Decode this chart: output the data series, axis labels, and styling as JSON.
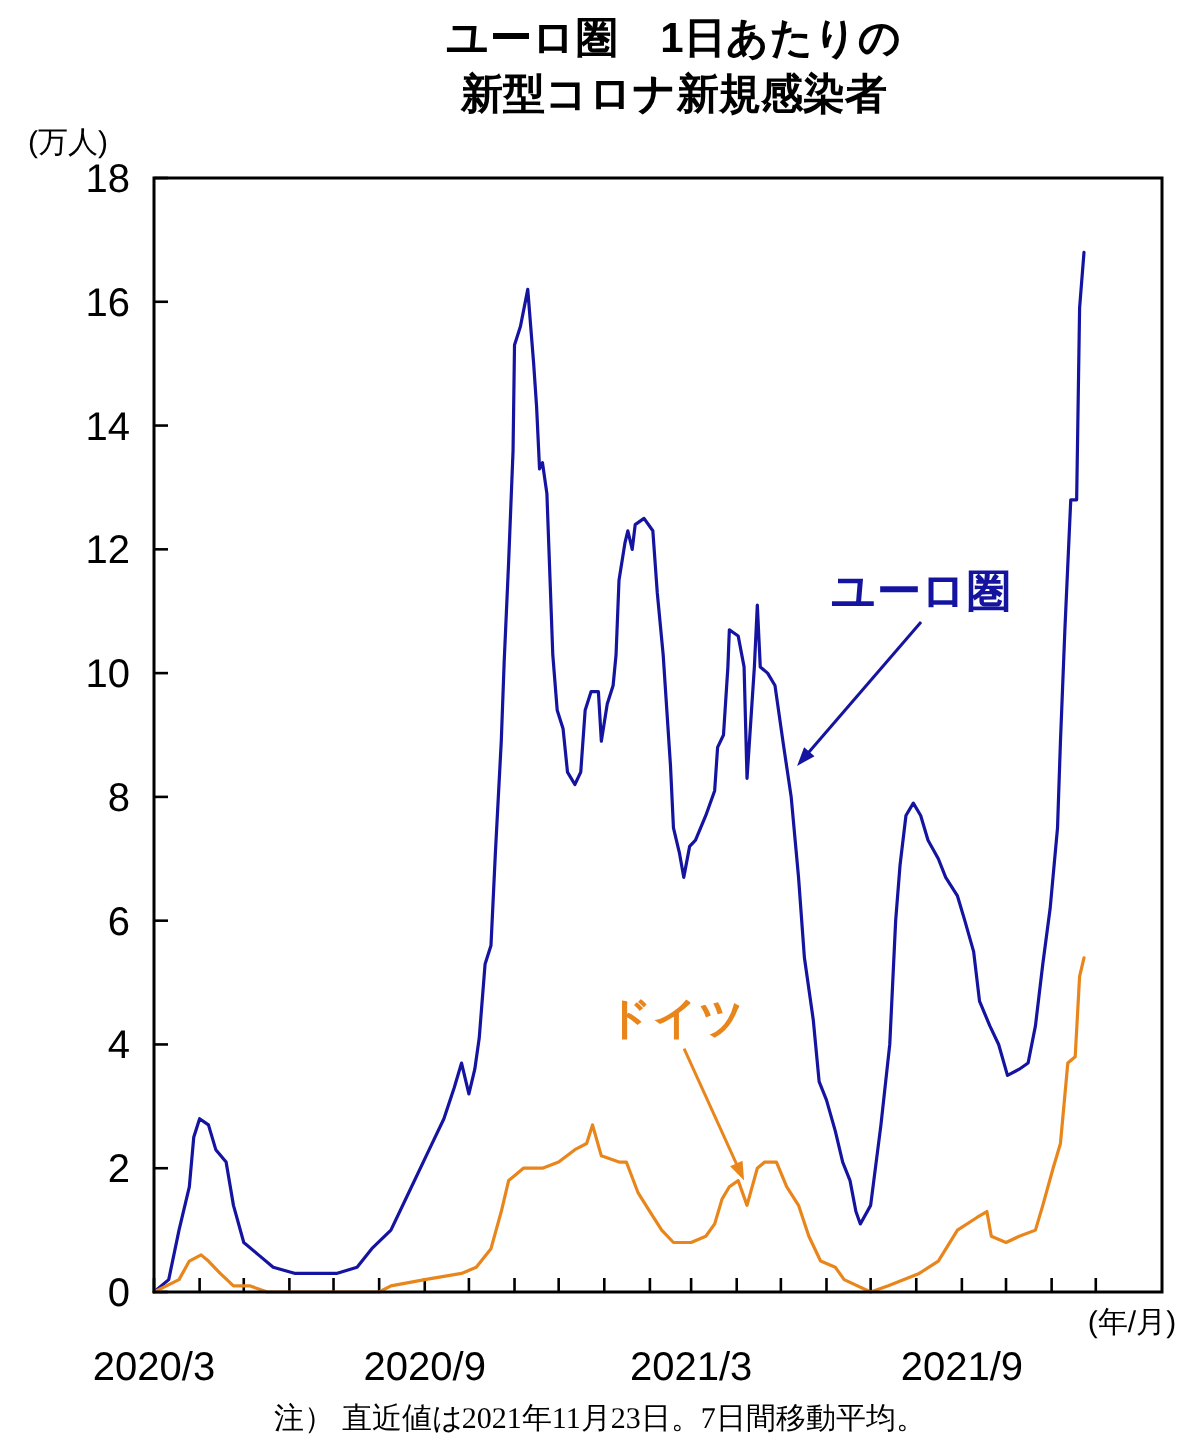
{
  "chart_data": {
    "type": "line",
    "title": "ユーロ圏　1日あたりの",
    "subtitle": "新型コロナ新規感染者",
    "ylabel": "(万人)",
    "xlabel": "(年/月)",
    "xlim": [
      "2020-03-01",
      "2022-01-15"
    ],
    "xticks": [
      {
        "value": "2020-03",
        "label": "2020/3"
      },
      {
        "value": "2020-04",
        "label": null
      },
      {
        "value": "2020-05",
        "label": null
      },
      {
        "value": "2020-06",
        "label": null
      },
      {
        "value": "2020-07",
        "label": null
      },
      {
        "value": "2020-08",
        "label": null
      },
      {
        "value": "2020-09",
        "label": "2020/9"
      },
      {
        "value": "2020-10",
        "label": null
      },
      {
        "value": "2020-11",
        "label": null
      },
      {
        "value": "2020-12",
        "label": null
      },
      {
        "value": "2021-01",
        "label": null
      },
      {
        "value": "2021-02",
        "label": null
      },
      {
        "value": "2021-03",
        "label": "2021/3"
      },
      {
        "value": "2021-04",
        "label": null
      },
      {
        "value": "2021-05",
        "label": null
      },
      {
        "value": "2021-06",
        "label": null
      },
      {
        "value": "2021-07",
        "label": null
      },
      {
        "value": "2021-08",
        "label": null
      },
      {
        "value": "2021-09",
        "label": "2021/9"
      },
      {
        "value": "2021-10",
        "label": null
      },
      {
        "value": "2021-11",
        "label": null
      },
      {
        "value": "2021-12",
        "label": null
      }
    ],
    "ylim": [
      0,
      18
    ],
    "yticks": [
      0,
      2,
      4,
      6,
      8,
      10,
      12,
      14,
      16,
      18
    ],
    "grid": false,
    "marker": "none",
    "line_style": "solid",
    "series": [
      {
        "color": "#1414a0",
        "x": [
          "2020-03-01",
          "2020-03-11",
          "2020-03-18",
          "2020-03-25",
          "2020-03-28",
          "2020-04-01",
          "2020-04-07",
          "2020-04-12",
          "2020-04-19",
          "2020-04-24",
          "2020-05-01",
          "2020-05-11",
          "2020-05-21",
          "2020-06-05",
          "2020-07-03",
          "2020-07-17",
          "2020-07-27",
          "2020-08-09",
          "2020-08-21",
          "2020-09-04",
          "2020-09-14",
          "2020-09-21",
          "2020-09-26",
          "2020-10-01",
          "2020-10-05",
          "2020-10-08",
          "2020-10-12",
          "2020-10-16",
          "2020-10-19",
          "2020-10-23",
          "2020-10-25",
          "2020-10-28",
          "2020-10-31",
          "2020-11-01",
          "2020-11-05",
          "2020-11-10",
          "2020-11-14",
          "2020-11-16",
          "2020-11-18",
          "2020-11-20",
          "2020-11-23",
          "2020-11-27",
          "2020-11-30",
          "2020-12-04",
          "2020-12-07",
          "2020-12-12",
          "2020-12-16",
          "2020-12-19",
          "2020-12-23",
          "2020-12-28",
          "2020-12-30",
          "2021-01-03",
          "2021-01-07",
          "2021-01-09",
          "2021-01-11",
          "2021-01-15",
          "2021-01-17",
          "2021-01-20",
          "2021-01-22",
          "2021-01-28",
          "2021-02-03",
          "2021-02-06",
          "2021-02-10",
          "2021-02-15",
          "2021-02-17",
          "2021-02-21",
          "2021-02-24",
          "2021-02-28",
          "2021-03-04",
          "2021-03-11",
          "2021-03-17",
          "2021-03-19",
          "2021-03-23",
          "2021-03-26",
          "2021-03-27",
          "2021-04-02",
          "2021-04-06",
          "2021-04-08",
          "2021-04-13",
          "2021-04-15",
          "2021-04-17",
          "2021-04-22",
          "2021-04-27",
          "2021-05-03",
          "2021-05-08",
          "2021-05-13",
          "2021-05-17",
          "2021-05-23",
          "2021-05-27",
          "2021-06-01",
          "2021-06-07",
          "2021-06-12",
          "2021-06-17",
          "2021-06-21",
          "2021-06-24",
          "2021-07-01",
          "2021-07-08",
          "2021-07-14",
          "2021-07-18",
          "2021-07-21",
          "2021-07-25",
          "2021-07-30",
          "2021-08-04",
          "2021-08-09",
          "2021-08-16",
          "2021-08-21",
          "2021-08-29",
          "2021-09-03",
          "2021-09-09",
          "2021-09-13",
          "2021-09-20",
          "2021-09-26",
          "2021-10-02",
          "2021-10-10",
          "2021-10-16",
          "2021-10-21",
          "2021-10-26",
          "2021-10-31",
          "2021-11-05",
          "2021-11-07",
          "2021-11-10",
          "2021-11-14",
          "2021-11-18",
          "2021-11-20",
          "2021-11-23"
        ],
        "values": [
          0,
          0.2,
          1.0,
          1.7,
          2.5,
          2.8,
          2.7,
          2.3,
          2.1,
          1.4,
          0.8,
          0.6,
          0.4,
          0.3,
          0.3,
          0.4,
          0.7,
          1.0,
          1.6,
          2.3,
          2.8,
          3.3,
          3.7,
          3.2,
          3.6,
          4.1,
          5.3,
          5.6,
          7.1,
          8.9,
          10.2,
          11.8,
          13.6,
          15.3,
          15.6,
          16.2,
          15.0,
          14.3,
          13.3,
          13.4,
          12.9,
          10.3,
          9.4,
          9.1,
          8.4,
          8.2,
          8.4,
          9.4,
          9.7,
          9.7,
          8.9,
          9.5,
          9.8,
          10.3,
          11.5,
          12.1,
          12.3,
          12.0,
          12.4,
          12.5,
          12.3,
          11.3,
          10.3,
          8.5,
          7.5,
          7.1,
          6.7,
          7.2,
          7.3,
          7.7,
          8.1,
          8.8,
          9.0,
          10.1,
          10.7,
          10.6,
          10.1,
          8.3,
          10.1,
          11.1,
          10.1,
          10.0,
          9.8,
          8.8,
          8.0,
          6.7,
          5.4,
          4.4,
          3.4,
          3.1,
          2.6,
          2.1,
          1.8,
          1.3,
          1.1,
          1.4,
          2.7,
          4.0,
          6.0,
          6.9,
          7.7,
          7.9,
          7.7,
          7.3,
          7.0,
          6.7,
          6.4,
          6.0,
          5.5,
          4.7,
          4.3,
          4.0,
          3.5,
          3.6,
          3.7,
          4.3,
          5.3,
          6.2,
          7.5,
          8.9,
          10.7,
          12.8,
          12.8,
          15.9,
          16.8
        ]
      },
      {
        "color": "#e8861c",
        "x": [
          "2020-03-01",
          "2020-03-18",
          "2020-03-25",
          "2020-04-02",
          "2020-04-07",
          "2020-04-15",
          "2020-04-24",
          "2020-05-05",
          "2020-05-17",
          "2020-08-01",
          "2020-08-09",
          "2020-09-01",
          "2020-09-26",
          "2020-10-06",
          "2020-10-16",
          "2020-10-23",
          "2020-10-28",
          "2020-11-02",
          "2020-11-07",
          "2020-11-15",
          "2020-11-20",
          "2020-12-01",
          "2020-12-12",
          "2020-12-20",
          "2020-12-24",
          "2020-12-30",
          "2021-01-11",
          "2021-01-16",
          "2021-01-24",
          "2021-02-01",
          "2021-02-09",
          "2021-02-17",
          "2021-03-01",
          "2021-03-11",
          "2021-03-17",
          "2021-03-22",
          "2021-03-27",
          "2021-04-02",
          "2021-04-08",
          "2021-04-15",
          "2021-04-20",
          "2021-04-28",
          "2021-05-05",
          "2021-05-13",
          "2021-05-20",
          "2021-05-28",
          "2021-06-07",
          "2021-06-13",
          "2021-07-01",
          "2021-07-13",
          "2021-08-03",
          "2021-08-16",
          "2021-08-29",
          "2021-09-11",
          "2021-09-18",
          "2021-09-21",
          "2021-10-01",
          "2021-10-10",
          "2021-10-21",
          "2021-10-26",
          "2021-11-02",
          "2021-11-07",
          "2021-11-12",
          "2021-11-17",
          "2021-11-20",
          "2021-11-23"
        ],
        "values": [
          0,
          0.2,
          0.5,
          0.6,
          0.5,
          0.3,
          0.1,
          0.1,
          0.0,
          0.0,
          0.1,
          0.2,
          0.3,
          0.4,
          0.7,
          1.3,
          1.8,
          1.9,
          2.0,
          2.0,
          2.0,
          2.1,
          2.3,
          2.4,
          2.7,
          2.2,
          2.1,
          2.1,
          1.6,
          1.3,
          1.0,
          0.8,
          0.8,
          0.9,
          1.1,
          1.5,
          1.7,
          1.8,
          1.4,
          2.0,
          2.1,
          2.1,
          1.7,
          1.4,
          0.9,
          0.5,
          0.4,
          0.2,
          0.0,
          0.1,
          0.3,
          0.5,
          1.0,
          1.2,
          1.3,
          0.9,
          0.8,
          0.9,
          1.0,
          1.4,
          2.0,
          2.4,
          3.7,
          3.8,
          5.1,
          5.4
        ]
      }
    ],
    "annotations": [
      {
        "text": "ユーロ圏",
        "x": "2021-05-12",
        "y": 8.5
      },
      {
        "text": "ドイツ",
        "x": "2021-04-06",
        "y": 1.8
      },
      "注）  直近値は2021年11月23日。7日間移動平均。"
    ]
  }
}
